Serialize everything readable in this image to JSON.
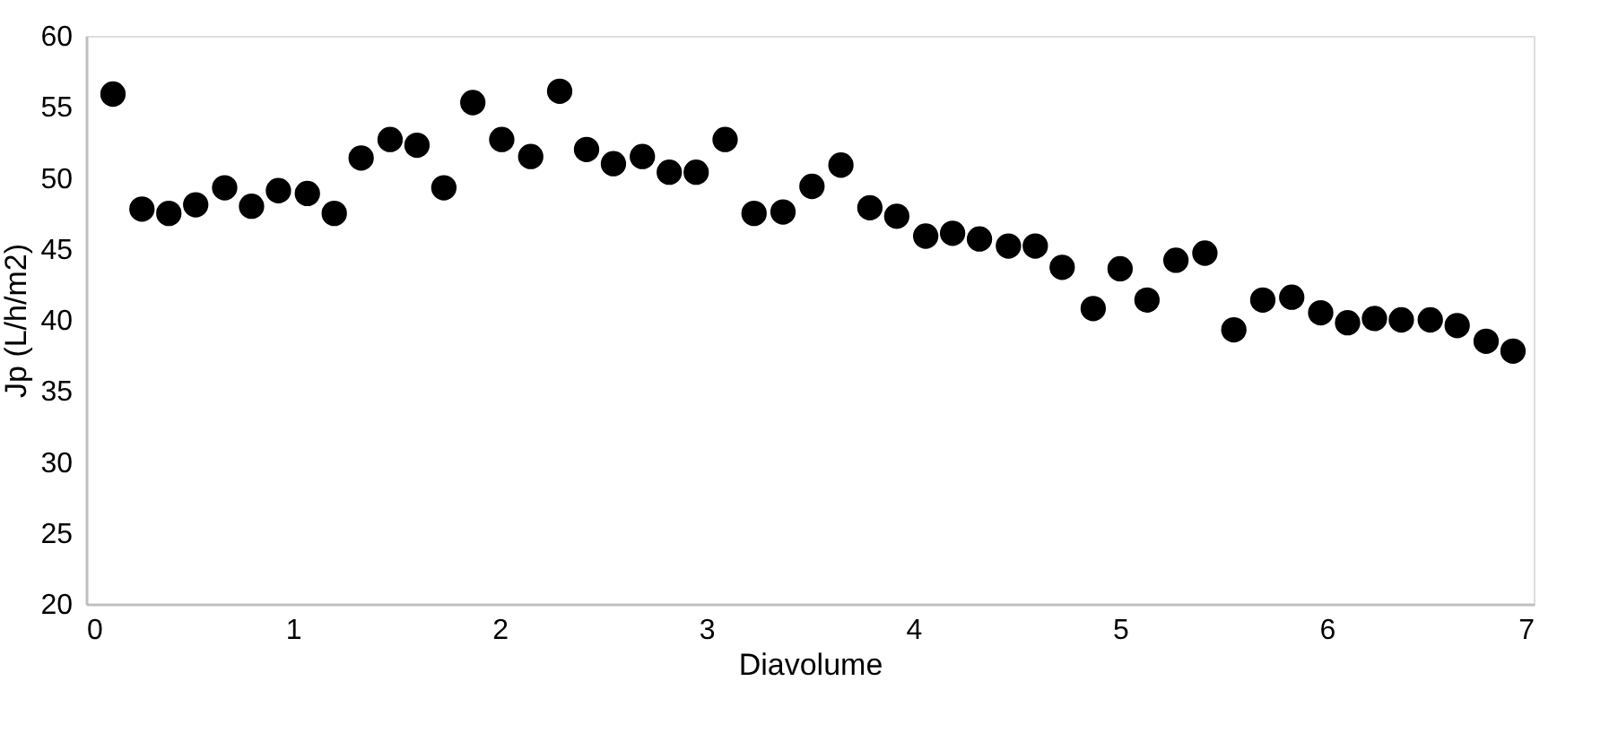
{
  "chart_data": {
    "type": "scatter",
    "xlabel": "Diavolume",
    "ylabel": "Jp (L/h/m2)",
    "x": [
      0.13,
      0.27,
      0.4,
      0.53,
      0.67,
      0.8,
      0.93,
      1.07,
      1.2,
      1.33,
      1.47,
      1.6,
      1.73,
      1.87,
      2.01,
      2.15,
      2.29,
      2.42,
      2.55,
      2.69,
      2.82,
      2.95,
      3.09,
      3.23,
      3.37,
      3.51,
      3.65,
      3.79,
      3.92,
      4.06,
      4.19,
      4.32,
      4.46,
      4.59,
      4.72,
      4.87,
      5.0,
      5.13,
      5.27,
      5.41,
      5.55,
      5.69,
      5.83,
      5.97,
      6.1,
      6.23,
      6.36,
      6.5,
      6.63,
      6.77,
      6.9
    ],
    "series": [
      {
        "color": "#000000",
        "values": [
          55.9,
          47.8,
          47.5,
          48.1,
          49.3,
          48.0,
          49.1,
          48.9,
          47.5,
          51.4,
          52.7,
          52.3,
          49.3,
          55.3,
          52.7,
          51.5,
          56.1,
          52.0,
          51.0,
          51.5,
          50.4,
          50.4,
          52.7,
          47.5,
          47.6,
          49.4,
          50.9,
          47.9,
          47.3,
          45.9,
          46.1,
          45.7,
          45.2,
          45.2,
          43.7,
          40.8,
          43.6,
          41.4,
          44.2,
          44.7,
          39.3,
          41.4,
          41.6,
          40.5,
          39.8,
          40.1,
          40.0,
          40.0,
          39.6,
          38.5,
          37.8
        ]
      }
    ],
    "xlim": [
      0,
      7
    ],
    "xticks": [
      0,
      1,
      2,
      3,
      4,
      5,
      6,
      7
    ],
    "ylim": [
      20,
      60
    ],
    "yticks": [
      20,
      25,
      30,
      35,
      40,
      45,
      50,
      55,
      60
    ],
    "marker": "circle",
    "grid": false,
    "legend": false
  }
}
